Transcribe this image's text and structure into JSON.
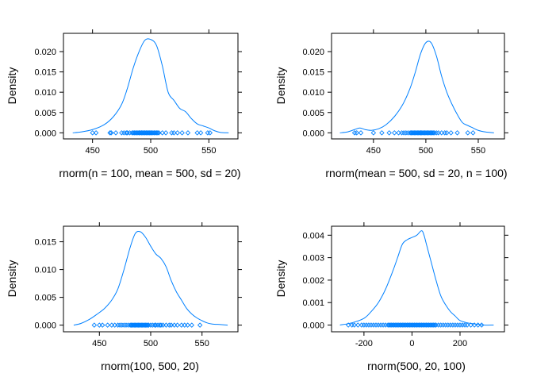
{
  "style": {
    "line_color": "#0080ff"
  },
  "chart_data": [
    {
      "type": "line",
      "xlabel": "rnorm(n = 100, mean = 500, sd = 20)",
      "ylabel": "Density",
      "xlim": [
        425,
        575
      ],
      "ylim": [
        -0.0015,
        0.0245
      ],
      "xticks": [
        450,
        500,
        550
      ],
      "yticks": [
        0.0,
        0.005,
        0.01,
        0.015,
        0.02
      ],
      "ytick_labels": [
        "0.000",
        "0.005",
        "0.010",
        "0.015",
        "0.020"
      ],
      "x": [
        433,
        440,
        450,
        460,
        468,
        475,
        480,
        485,
        490,
        495,
        500,
        505,
        510,
        515,
        520,
        525,
        530,
        535,
        540,
        545,
        550,
        555,
        560,
        567
      ],
      "y": [
        0.0,
        0.0002,
        0.0008,
        0.002,
        0.004,
        0.007,
        0.011,
        0.016,
        0.02,
        0.0228,
        0.023,
        0.0215,
        0.0165,
        0.01,
        0.008,
        0.006,
        0.0052,
        0.0035,
        0.0022,
        0.0017,
        0.0012,
        0.0005,
        0.0001,
        0.0
      ],
      "rug": [
        450,
        453,
        465,
        466,
        470,
        475,
        477,
        479,
        480,
        482,
        484,
        485,
        486,
        487,
        488,
        489,
        490,
        490,
        491,
        492,
        492,
        493,
        494,
        494,
        495,
        496,
        496,
        497,
        498,
        498,
        499,
        500,
        500,
        501,
        502,
        503,
        504,
        505,
        506,
        507,
        510,
        513,
        518,
        520,
        523,
        527,
        532,
        540,
        543,
        549,
        551
      ]
    },
    {
      "type": "line",
      "xlabel": "rnorm(mean = 500, sd = 20, n = 100)",
      "ylabel": "Density",
      "xlim": [
        410,
        575
      ],
      "ylim": [
        -0.0015,
        0.0245
      ],
      "xticks": [
        450,
        500,
        550
      ],
      "yticks": [
        0.0,
        0.005,
        0.01,
        0.015,
        0.02
      ],
      "ytick_labels": [
        "0.000",
        "0.005",
        "0.010",
        "0.015",
        "0.020"
      ],
      "x": [
        418,
        425,
        432,
        437,
        442,
        448,
        455,
        462,
        470,
        478,
        485,
        490,
        495,
        500,
        505,
        510,
        515,
        520,
        525,
        530,
        535,
        540,
        545,
        550,
        557,
        565
      ],
      "y": [
        0.0,
        0.0002,
        0.0008,
        0.0012,
        0.0008,
        0.0006,
        0.001,
        0.002,
        0.004,
        0.007,
        0.011,
        0.015,
        0.0195,
        0.0222,
        0.0222,
        0.019,
        0.014,
        0.01,
        0.007,
        0.0045,
        0.0025,
        0.0018,
        0.0012,
        0.0006,
        0.0002,
        0.0
      ],
      "rug": [
        432,
        434,
        438,
        450,
        458,
        465,
        470,
        474,
        477,
        479,
        481,
        483,
        485,
        486,
        487,
        488,
        489,
        490,
        491,
        492,
        493,
        494,
        495,
        495,
        496,
        497,
        498,
        499,
        500,
        501,
        502,
        503,
        504,
        505,
        506,
        507,
        508,
        510,
        512,
        515,
        518,
        520,
        524,
        530,
        540,
        545
      ]
    },
    {
      "type": "line",
      "xlabel": "rnorm(100, 500, 20)",
      "ylabel": "Density",
      "xlim": [
        415,
        585
      ],
      "ylim": [
        -0.0012,
        0.0178
      ],
      "xticks": [
        450,
        500,
        550
      ],
      "yticks": [
        0.0,
        0.005,
        0.01,
        0.015
      ],
      "ytick_labels": [
        "0.000",
        "0.005",
        "0.010",
        "0.015"
      ],
      "x": [
        425,
        432,
        440,
        448,
        455,
        462,
        468,
        474,
        480,
        485,
        490,
        495,
        500,
        505,
        510,
        515,
        520,
        525,
        530,
        535,
        540,
        545,
        550,
        555,
        560,
        568,
        575
      ],
      "y": [
        0.0,
        0.0003,
        0.001,
        0.002,
        0.003,
        0.0045,
        0.0065,
        0.01,
        0.014,
        0.0165,
        0.0168,
        0.0158,
        0.0142,
        0.0128,
        0.012,
        0.0105,
        0.008,
        0.006,
        0.0045,
        0.003,
        0.002,
        0.0013,
        0.0008,
        0.0004,
        0.0002,
        0.0001,
        0.0
      ],
      "rug": [
        445,
        450,
        453,
        458,
        462,
        465,
        468,
        470,
        472,
        474,
        476,
        478,
        480,
        481,
        482,
        483,
        484,
        485,
        486,
        487,
        488,
        489,
        490,
        491,
        492,
        493,
        494,
        495,
        496,
        497,
        498,
        500,
        502,
        504,
        505,
        507,
        509,
        510,
        512,
        515,
        518,
        520,
        523,
        526,
        530,
        533,
        536,
        540,
        548
      ]
    },
    {
      "type": "line",
      "xlabel": "rnorm(500, 20, 100)",
      "ylabel": "Density",
      "xlim": [
        -335,
        385
      ],
      "ylim": [
        -0.0003,
        0.0044
      ],
      "xticks": [
        -200,
        0,
        200
      ],
      "yticks": [
        0.0,
        0.001,
        0.002,
        0.003,
        0.004
      ],
      "ytick_labels": [
        "0.000",
        "0.001",
        "0.002",
        "0.003",
        "0.004"
      ],
      "x": [
        -300,
        -250,
        -200,
        -170,
        -140,
        -110,
        -80,
        -60,
        -40,
        -20,
        0,
        20,
        40,
        50,
        60,
        80,
        100,
        120,
        140,
        160,
        180,
        200,
        230,
        260,
        300,
        340
      ],
      "y": [
        0.0,
        0.0001,
        0.0003,
        0.0006,
        0.001,
        0.0016,
        0.0024,
        0.003,
        0.0036,
        0.0038,
        0.0039,
        0.004,
        0.0042,
        0.004,
        0.0036,
        0.0028,
        0.002,
        0.0013,
        0.0009,
        0.0006,
        0.0004,
        0.0002,
        0.0001,
        5e-05,
        0.0,
        0.0
      ],
      "rug": [
        -265,
        -250,
        -240,
        -225,
        -210,
        -200,
        -190,
        -180,
        -170,
        -160,
        -150,
        -140,
        -130,
        -120,
        -110,
        -100,
        -95,
        -90,
        -85,
        -80,
        -75,
        -70,
        -65,
        -60,
        -55,
        -50,
        -45,
        -40,
        -35,
        -30,
        -25,
        -20,
        -15,
        -10,
        -5,
        0,
        5,
        10,
        15,
        20,
        25,
        30,
        35,
        40,
        45,
        50,
        55,
        60,
        65,
        70,
        75,
        80,
        85,
        90,
        95,
        100,
        110,
        120,
        130,
        140,
        150,
        160,
        170,
        180,
        190,
        200,
        210,
        220,
        230,
        245,
        260,
        275,
        290
      ]
    }
  ]
}
